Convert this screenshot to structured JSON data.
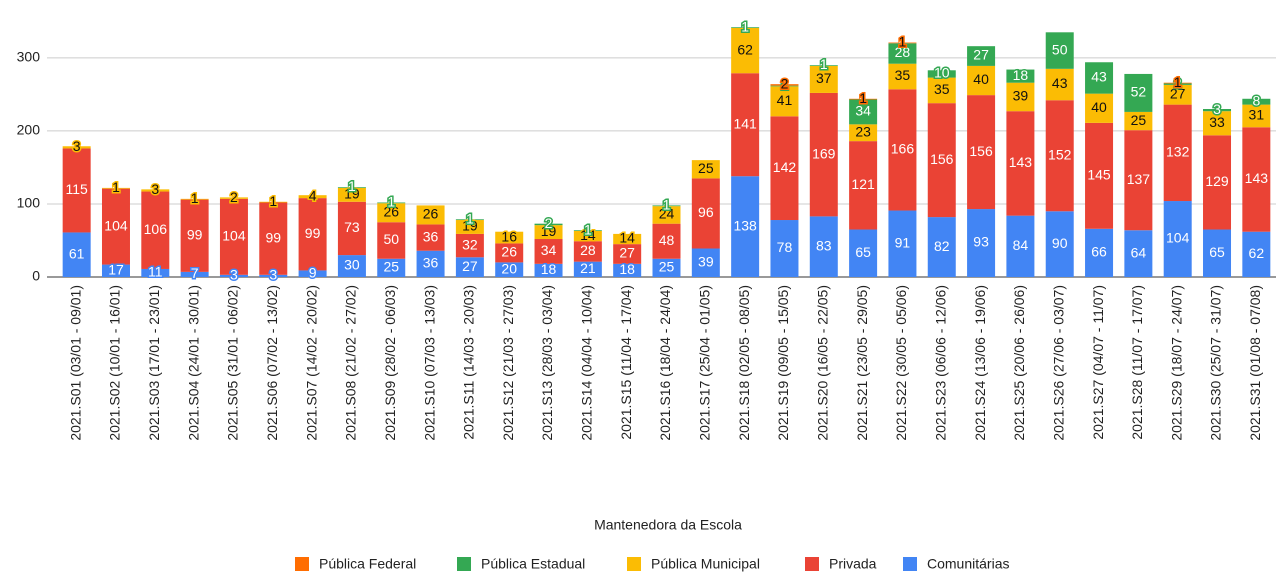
{
  "chart_data": {
    "type": "stacked_bar",
    "categories": [
      "2021.S01 (03/01 - 09/01)",
      "2021.S02 (10/01 - 16/01)",
      "2021.S03 (17/01 - 23/01)",
      "2021.S04 (24/01 - 30/01)",
      "2021.S05 (31/01 - 06/02)",
      "2021.S06 (07/02 - 13/02)",
      "2021.S07 (14/02 - 20/02)",
      "2021.S08 (21/02 - 27/02)",
      "2021.S09 (28/02 - 06/03)",
      "2021.S10 (07/03 - 13/03)",
      "2021.S11 (14/03 - 20/03)",
      "2021.S12 (21/03 - 27/03)",
      "2021.S13 (28/03 - 03/04)",
      "2021.S14 (04/04 - 10/04)",
      "2021.S15 (11/04 - 17/04)",
      "2021.S16 (18/04 - 24/04)",
      "2021.S17 (25/04 - 01/05)",
      "2021.S18 (02/05 - 08/05)",
      "2021.S19 (09/05 - 15/05)",
      "2021.S20 (16/05 - 22/05)",
      "2021.S21 (23/05 - 29/05)",
      "2021.S22 (30/05 - 05/06)",
      "2021.S23 (06/06 - 12/06)",
      "2021.S24 (13/06 - 19/06)",
      "2021.S25 (20/06 - 26/06)",
      "2021.S26 (27/06 - 03/07)",
      "2021.S27 (04/07 - 11/07)",
      "2021.S28 (11/07 - 17/07)",
      "2021.S29 (18/07 - 24/07)",
      "2021.S30 (25/07 - 31/07)",
      "2021.S31 (01/08 - 07/08)"
    ],
    "series": [
      {
        "name": "Pública Federal",
        "color": "#ff6d01",
        "values": [
          null,
          null,
          null,
          null,
          null,
          null,
          null,
          null,
          null,
          null,
          null,
          null,
          null,
          null,
          null,
          null,
          null,
          null,
          2,
          null,
          1,
          1,
          null,
          null,
          null,
          null,
          null,
          null,
          1,
          null,
          null
        ]
      },
      {
        "name": "Pública Estadual",
        "color": "#34a853",
        "values": [
          null,
          null,
          null,
          null,
          null,
          null,
          null,
          1,
          1,
          null,
          1,
          null,
          2,
          1,
          null,
          1,
          null,
          1,
          1,
          1,
          34,
          28,
          10,
          27,
          18,
          50,
          43,
          52,
          2,
          3,
          8
        ]
      },
      {
        "name": "Pública Municipal",
        "color": "#fbbc04",
        "values": [
          3,
          1,
          3,
          1,
          2,
          1,
          4,
          19,
          26,
          26,
          19,
          16,
          19,
          14,
          14,
          24,
          25,
          62,
          41,
          37,
          23,
          35,
          35,
          40,
          39,
          43,
          40,
          25,
          27,
          33,
          31
        ]
      },
      {
        "name": "Privada",
        "color": "#ea4335",
        "values": [
          115,
          104,
          106,
          99,
          104,
          99,
          99,
          73,
          50,
          36,
          32,
          26,
          34,
          28,
          27,
          48,
          96,
          141,
          142,
          169,
          121,
          166,
          156,
          156,
          143,
          152,
          145,
          137,
          132,
          129,
          143
        ]
      },
      {
        "name": "Comunitárias",
        "color": "#4285f4",
        "values": [
          61,
          17,
          11,
          7,
          3,
          3,
          9,
          30,
          25,
          36,
          27,
          20,
          18,
          21,
          18,
          25,
          39,
          138,
          78,
          83,
          65,
          91,
          82,
          93,
          84,
          90,
          66,
          64,
          104,
          65,
          62
        ]
      }
    ],
    "ylim": [
      0,
      345
    ],
    "yticks": [
      0,
      100,
      200,
      300
    ],
    "grid": true,
    "legend_title": "Mantenedora da Escola",
    "legend": "bottom"
  }
}
